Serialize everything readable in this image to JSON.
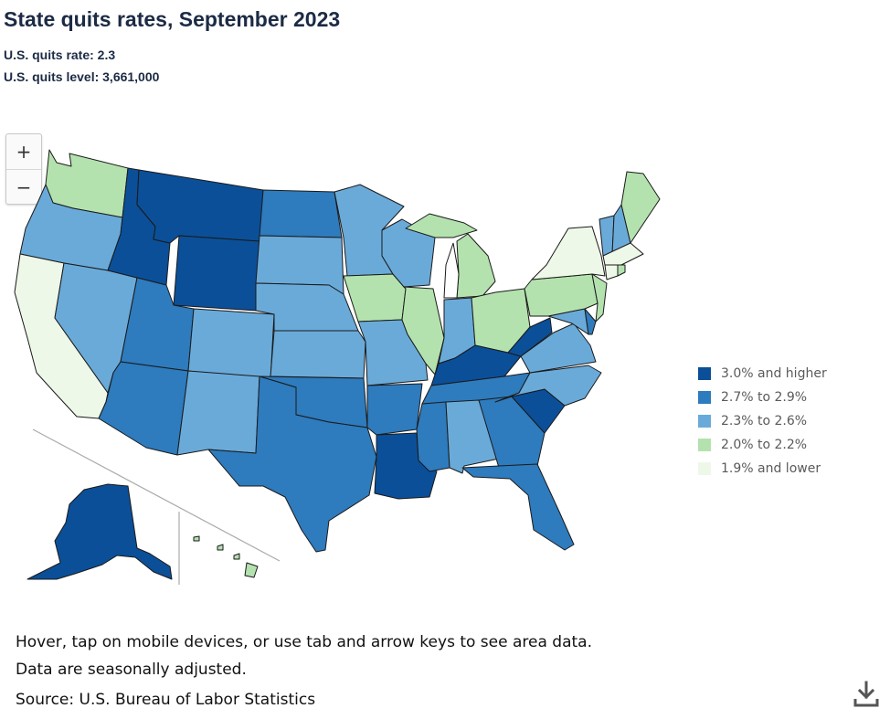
{
  "header": {
    "title": "State quits rates, September 2023",
    "rate_line": "U.S. quits rate: 2.3",
    "level_line": "U.S. quits level: 3,661,000"
  },
  "zoom": {
    "in_label": "+",
    "out_label": "−"
  },
  "colors": {
    "c1": "#0b4f98",
    "c2": "#2e7bbd",
    "c3": "#6aaad9",
    "c4": "#b4e2ae",
    "c5": "#eef8e8",
    "border": "#1a1a1a"
  },
  "legend": [
    {
      "label": "3.0% and higher",
      "color": "#0b4f98"
    },
    {
      "label": "2.7% to 2.9%",
      "color": "#2e7bbd"
    },
    {
      "label": "2.3% to 2.6%",
      "color": "#6aaad9"
    },
    {
      "label": "2.0% to 2.2%",
      "color": "#b4e2ae"
    },
    {
      "label": "1.9% and lower",
      "color": "#eef8e8"
    }
  ],
  "notes": {
    "line1": "Hover, tap on mobile devices, or use tab and arrow keys to see area data.",
    "line2": "Data are seasonally adjusted.",
    "source": "Source: U.S. Bureau of Labor Statistics"
  },
  "icons": {
    "download": "download-icon",
    "zoom_in": "plus-icon",
    "zoom_out": "minus-icon"
  }
}
